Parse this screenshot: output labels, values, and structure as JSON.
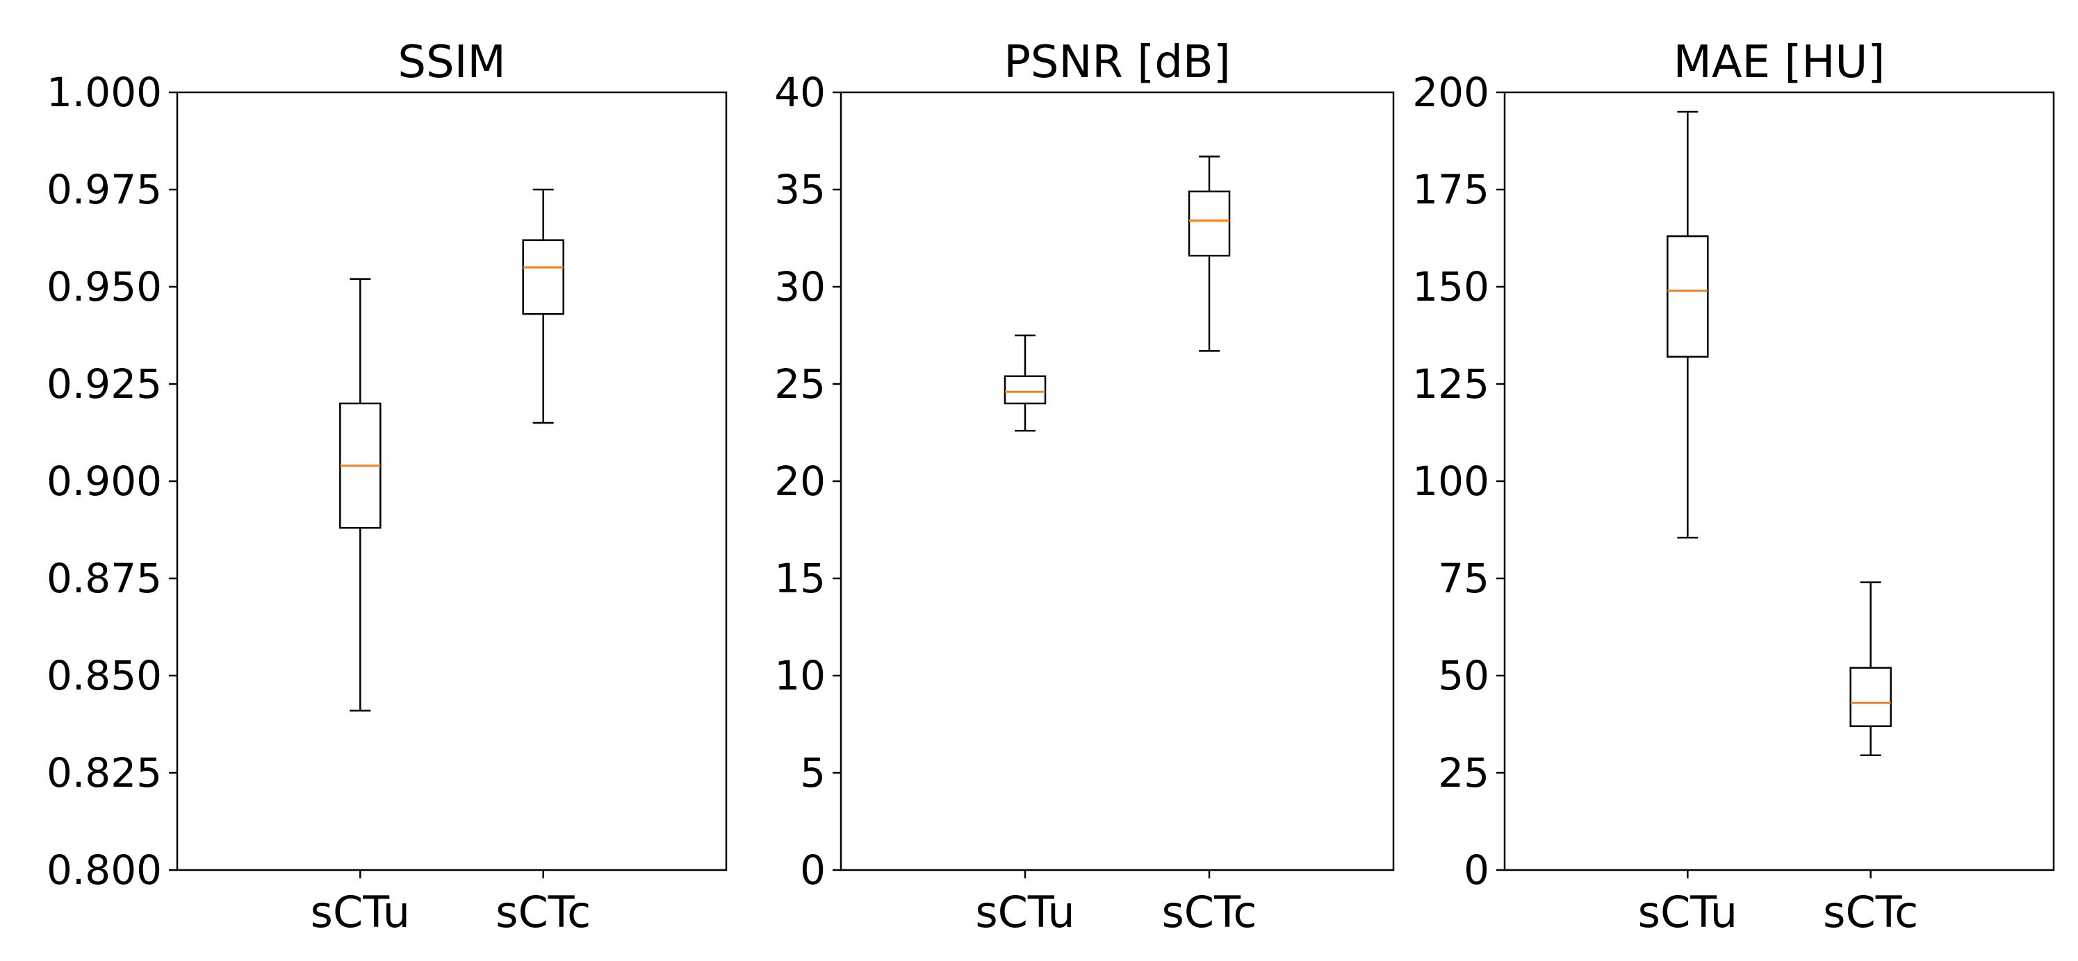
{
  "chart_data": [
    {
      "type": "boxplot",
      "title": "SSIM",
      "categories": [
        "sCTu",
        "sCTc"
      ],
      "ylim": [
        0.8,
        1.0
      ],
      "yticks": [
        "0.800",
        "0.825",
        "0.850",
        "0.875",
        "0.900",
        "0.925",
        "0.950",
        "0.975",
        "1.000"
      ],
      "boxes": [
        {
          "category": "sCTu",
          "whisker_low": 0.841,
          "q1": 0.888,
          "median": 0.904,
          "q3": 0.92,
          "whisker_high": 0.952
        },
        {
          "category": "sCTc",
          "whisker_low": 0.915,
          "q1": 0.943,
          "median": 0.955,
          "q3": 0.962,
          "whisker_high": 0.975
        }
      ],
      "grid": false
    },
    {
      "type": "boxplot",
      "title": "PSNR [dB]",
      "categories": [
        "sCTu",
        "sCTc"
      ],
      "ylim": [
        0,
        40
      ],
      "yticks": [
        "0",
        "5",
        "10",
        "15",
        "20",
        "25",
        "30",
        "35",
        "40"
      ],
      "boxes": [
        {
          "category": "sCTu",
          "whisker_low": 22.6,
          "q1": 24.0,
          "median": 24.6,
          "q3": 25.4,
          "whisker_high": 27.5
        },
        {
          "category": "sCTc",
          "whisker_low": 26.7,
          "q1": 31.6,
          "median": 33.4,
          "q3": 34.9,
          "whisker_high": 36.7
        }
      ],
      "grid": false
    },
    {
      "type": "boxplot",
      "title": "MAE [HU]",
      "categories": [
        "sCTu",
        "sCTc"
      ],
      "ylim": [
        0,
        200
      ],
      "yticks": [
        "0",
        "25",
        "50",
        "75",
        "100",
        "125",
        "150",
        "175",
        "200"
      ],
      "boxes": [
        {
          "category": "sCTu",
          "whisker_low": 85.5,
          "q1": 132,
          "median": 149,
          "q3": 163,
          "whisker_high": 195
        },
        {
          "category": "sCTc",
          "whisker_low": 29.5,
          "q1": 37,
          "median": 43,
          "q3": 52,
          "whisker_high": 74
        }
      ],
      "grid": false
    }
  ],
  "colors": {
    "box": "#000000",
    "median": "#ff7f0e",
    "axes": "#000000"
  }
}
